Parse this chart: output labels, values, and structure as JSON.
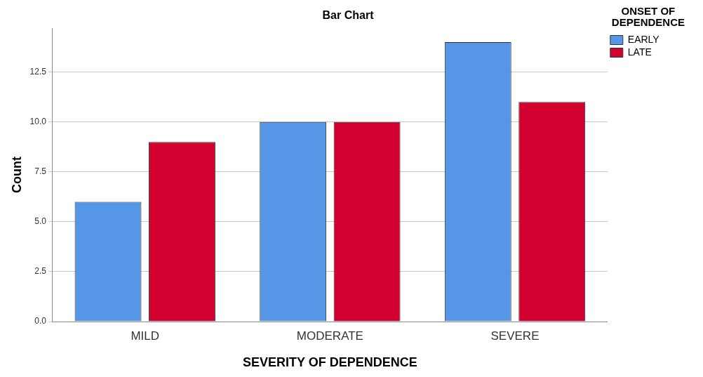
{
  "chart_data": {
    "type": "bar",
    "title": "Bar Chart",
    "xlabel": "SEVERITY OF DEPENDENCE",
    "ylabel": "Count",
    "legend_title": "ONSET OF DEPENDENCE",
    "categories": [
      "MILD",
      "MODERATE",
      "SEVERE"
    ],
    "series": [
      {
        "name": "EARLY",
        "color": "#5596e6",
        "values": [
          6,
          10,
          14
        ]
      },
      {
        "name": "LATE",
        "color": "#d2002e",
        "values": [
          9,
          10,
          11
        ]
      }
    ],
    "ylim": [
      0,
      14.7
    ],
    "yticks": [
      {
        "value": 0,
        "label": "0.0"
      },
      {
        "value": 2.5,
        "label": "2.5"
      },
      {
        "value": 5,
        "label": "5.0"
      },
      {
        "value": 7.5,
        "label": "7.5"
      },
      {
        "value": 10,
        "label": "10.0"
      },
      {
        "value": 12.5,
        "label": "12.5"
      }
    ],
    "grid": "y",
    "legend": "top right"
  }
}
